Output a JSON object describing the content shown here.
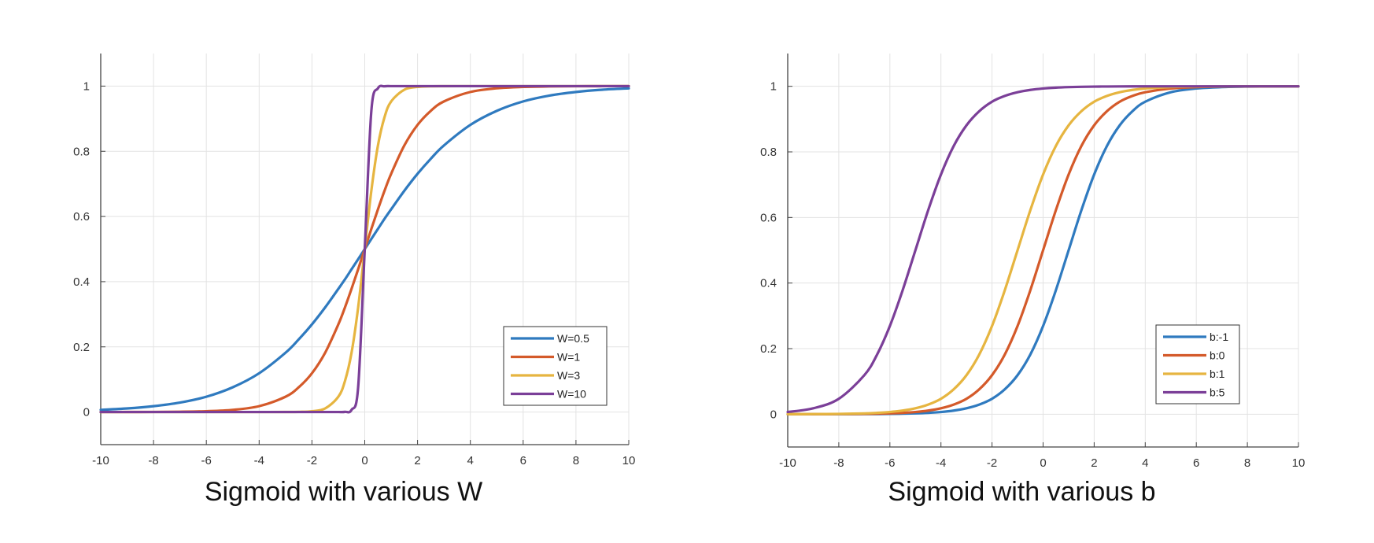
{
  "chart_data": [
    {
      "type": "line",
      "title": "Sigmoid with various W",
      "xlabel": "",
      "ylabel": "",
      "xlim": [
        -10,
        10
      ],
      "ylim": [
        -0.1,
        1.1
      ],
      "xticks": [
        -10,
        -8,
        -6,
        -4,
        -2,
        0,
        2,
        4,
        6,
        8,
        10
      ],
      "yticks": [
        0,
        0.2,
        0.4,
        0.6,
        0.8,
        1
      ],
      "xtick_labels": [
        "-10",
        "-8",
        "-6",
        "-4",
        "-2",
        "0",
        "2",
        "4",
        "6",
        "8",
        "10"
      ],
      "ytick_labels": [
        "0",
        "0.2",
        "0.4",
        "0.6",
        "0.8",
        "1"
      ],
      "grid": true,
      "legend_position": "bottom-right",
      "x": [
        -10,
        -9,
        -8,
        -7,
        -6,
        -5,
        -4,
        -3,
        -2.5,
        -2,
        -1.5,
        -1,
        -0.75,
        -0.5,
        -0.25,
        0,
        0.25,
        0.5,
        0.75,
        1,
        1.5,
        2,
        2.5,
        3,
        4,
        5,
        6,
        7,
        8,
        9,
        10
      ],
      "series": [
        {
          "name": "W=0.5",
          "color": "#2F7ABF",
          "values": [
            0.0067,
            0.011,
            0.018,
            0.029,
            0.047,
            0.076,
            0.119,
            0.182,
            0.223,
            0.269,
            0.321,
            0.378,
            0.407,
            0.438,
            0.469,
            0.5,
            0.531,
            0.562,
            0.593,
            0.622,
            0.679,
            0.731,
            0.777,
            0.818,
            0.881,
            0.924,
            0.953,
            0.971,
            0.982,
            0.989,
            0.993
          ]
        },
        {
          "name": "W=1",
          "color": "#D45A2A",
          "values": [
            4.54e-05,
            0.000123,
            0.000335,
            0.000911,
            0.00247,
            0.0067,
            0.018,
            0.047,
            0.076,
            0.119,
            0.182,
            0.269,
            0.321,
            0.378,
            0.438,
            0.5,
            0.562,
            0.622,
            0.679,
            0.731,
            0.818,
            0.881,
            0.924,
            0.953,
            0.982,
            0.9933,
            0.9975,
            0.9991,
            0.9997,
            0.9999,
            1.0
          ]
        },
        {
          "name": "W=3",
          "color": "#E6B540",
          "values": [
            0,
            0,
            0,
            0,
            0,
            0,
            6e-06,
            0.000123,
            0.00055,
            0.00247,
            0.011,
            0.047,
            0.095,
            0.182,
            0.321,
            0.5,
            0.679,
            0.818,
            0.905,
            0.953,
            0.989,
            0.9975,
            0.99945,
            0.99988,
            1,
            1,
            1,
            1,
            1,
            1,
            1
          ]
        },
        {
          "name": "W=10",
          "color": "#7B3F98",
          "values": [
            0,
            0,
            0,
            0,
            0,
            0,
            0,
            0,
            0,
            0,
            0,
            4.54e-05,
            0.00055,
            0.0067,
            0.076,
            0.5,
            0.924,
            0.9933,
            0.99945,
            0.99995,
            1,
            1,
            1,
            1,
            1,
            1,
            1,
            1,
            1,
            1,
            1
          ]
        }
      ]
    },
    {
      "type": "line",
      "title": "Sigmoid with various b",
      "xlabel": "",
      "ylabel": "",
      "xlim": [
        -10,
        10
      ],
      "ylim": [
        -0.1,
        1.1
      ],
      "xticks": [
        -10,
        -8,
        -6,
        -4,
        -2,
        0,
        2,
        4,
        6,
        8,
        10
      ],
      "yticks": [
        0,
        0.2,
        0.4,
        0.6,
        0.8,
        1
      ],
      "xtick_labels": [
        "-10",
        "-8",
        "-6",
        "-4",
        "-2",
        "0",
        "2",
        "4",
        "6",
        "8",
        "10"
      ],
      "ytick_labels": [
        "0",
        "0.2",
        "0.4",
        "0.6",
        "0.8",
        "1"
      ],
      "grid": true,
      "legend_position": "bottom-right",
      "x": [
        -10,
        -9,
        -8,
        -7,
        -6.5,
        -6,
        -5.5,
        -5,
        -4.5,
        -4,
        -3.5,
        -3,
        -2.5,
        -2,
        -1.5,
        -1,
        -0.5,
        0,
        0.5,
        1,
        1.5,
        2,
        2.5,
        3,
        3.5,
        4,
        5,
        6,
        7,
        8,
        9,
        10
      ],
      "series": [
        {
          "name": "b:-1",
          "color": "#2F7ABF",
          "values": [
            1.67e-05,
            4.54e-05,
            0.000123,
            0.000335,
            0.00055,
            0.000911,
            0.0015,
            0.00247,
            0.0041,
            0.0067,
            0.011,
            0.018,
            0.0293,
            0.047,
            0.0759,
            0.119,
            0.182,
            0.269,
            0.378,
            0.5,
            0.622,
            0.731,
            0.818,
            0.881,
            0.924,
            0.953,
            0.982,
            0.9933,
            0.9975,
            0.9991,
            0.9997,
            0.9999
          ]
        },
        {
          "name": "b:0",
          "color": "#D45A2A",
          "values": [
            4.54e-05,
            0.000123,
            0.000335,
            0.000911,
            0.0015,
            0.00247,
            0.0041,
            0.0067,
            0.011,
            0.018,
            0.0293,
            0.047,
            0.0759,
            0.119,
            0.182,
            0.269,
            0.378,
            0.5,
            0.622,
            0.731,
            0.818,
            0.881,
            0.924,
            0.953,
            0.9707,
            0.982,
            0.9933,
            0.9975,
            0.9991,
            0.9997,
            0.9999,
            1.0
          ]
        },
        {
          "name": "b:1",
          "color": "#E6B540",
          "values": [
            0.000123,
            0.000335,
            0.000911,
            0.00247,
            0.0041,
            0.0067,
            0.011,
            0.018,
            0.0293,
            0.047,
            0.0759,
            0.119,
            0.182,
            0.269,
            0.378,
            0.5,
            0.622,
            0.731,
            0.818,
            0.881,
            0.924,
            0.953,
            0.9707,
            0.982,
            0.989,
            0.9933,
            0.9975,
            0.9991,
            0.9997,
            0.9999,
            1.0,
            1.0
          ]
        },
        {
          "name": "b:5",
          "color": "#7B3F98",
          "values": [
            0.0067,
            0.018,
            0.047,
            0.119,
            0.182,
            0.269,
            0.378,
            0.5,
            0.622,
            0.731,
            0.818,
            0.881,
            0.924,
            0.953,
            0.9707,
            0.982,
            0.989,
            0.9933,
            0.9959,
            0.9975,
            0.9985,
            0.9991,
            0.9994,
            0.9997,
            0.9998,
            0.9999,
            1.0,
            1.0,
            1.0,
            1.0,
            1.0,
            1.0
          ]
        }
      ]
    }
  ]
}
